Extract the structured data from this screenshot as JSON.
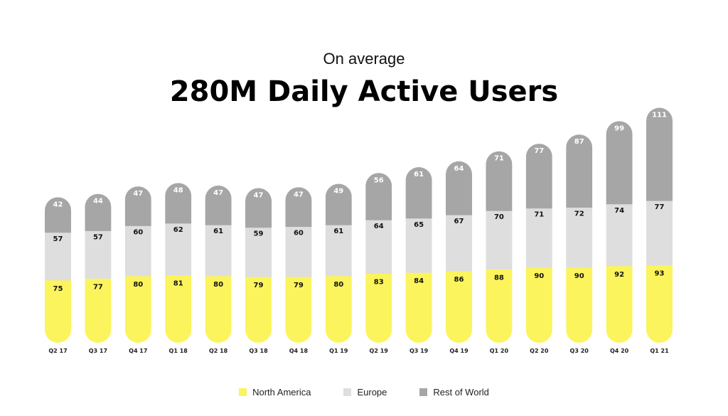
{
  "chart_data": {
    "type": "bar",
    "stacked": true,
    "subtitle": "On average",
    "title": "280M Daily Active Users",
    "categories": [
      "Q2 17",
      "Q3 17",
      "Q4 17",
      "Q1 18",
      "Q2 18",
      "Q3 18",
      "Q4 18",
      "Q1 19",
      "Q2 19",
      "Q3 19",
      "Q4 19",
      "Q1 20",
      "Q2 20",
      "Q3 20",
      "Q4 20",
      "Q1 21"
    ],
    "series": [
      {
        "name": "North America",
        "color": "#fbf45c",
        "values": [
          75,
          77,
          80,
          81,
          80,
          79,
          79,
          80,
          83,
          84,
          86,
          88,
          90,
          90,
          92,
          93
        ]
      },
      {
        "name": "Europe",
        "color": "#dedede",
        "values": [
          57,
          57,
          60,
          62,
          61,
          59,
          60,
          61,
          64,
          65,
          67,
          70,
          71,
          72,
          74,
          77
        ]
      },
      {
        "name": "Rest of World",
        "color": "#a6a6a6",
        "values": [
          42,
          44,
          47,
          48,
          47,
          47,
          47,
          49,
          56,
          61,
          64,
          71,
          77,
          87,
          99,
          111
        ]
      }
    ],
    "legend_position": "bottom",
    "grid": false,
    "ylim": [
      0,
      280
    ]
  }
}
